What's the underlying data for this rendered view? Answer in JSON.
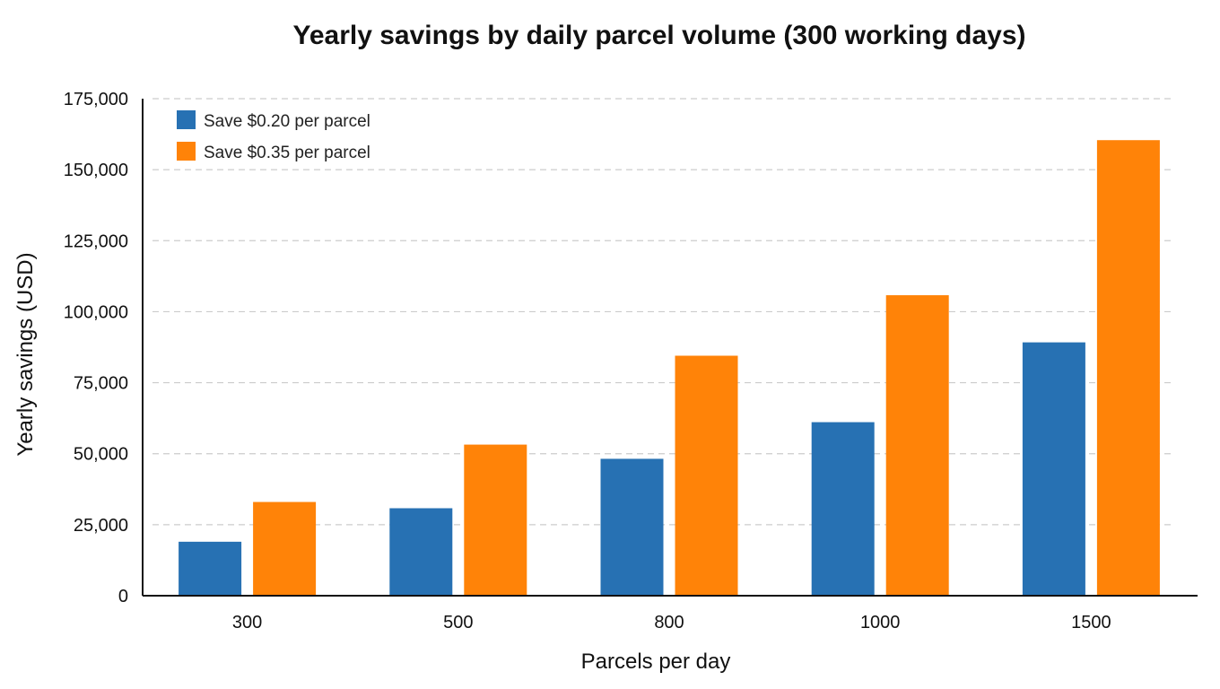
{
  "chart_data": {
    "type": "bar",
    "title": "Yearly savings by daily parcel volume (300 working days)",
    "xlabel": "Parcels per day",
    "ylabel": "Yearly savings (USD)",
    "categories": [
      "300",
      "500",
      "800",
      "1000",
      "1500"
    ],
    "series": [
      {
        "name": "Save $0.20 per parcel",
        "color": "#2771b3",
        "values": [
          19000,
          30800,
          48200,
          61100,
          89200
        ]
      },
      {
        "name": "Save $0.35 per parcel",
        "color": "#ff8308",
        "values": [
          33000,
          53200,
          84500,
          105800,
          160400
        ]
      }
    ],
    "ylim": [
      0,
      175000
    ],
    "yticks": [
      0,
      25000,
      50000,
      75000,
      100000,
      125000,
      150000,
      175000
    ],
    "ytick_labels": [
      "0",
      "25,000",
      "50,000",
      "75,000",
      "100,000",
      "125,000",
      "150,000",
      "175,000"
    ],
    "grid": true,
    "legend": "top-left"
  }
}
